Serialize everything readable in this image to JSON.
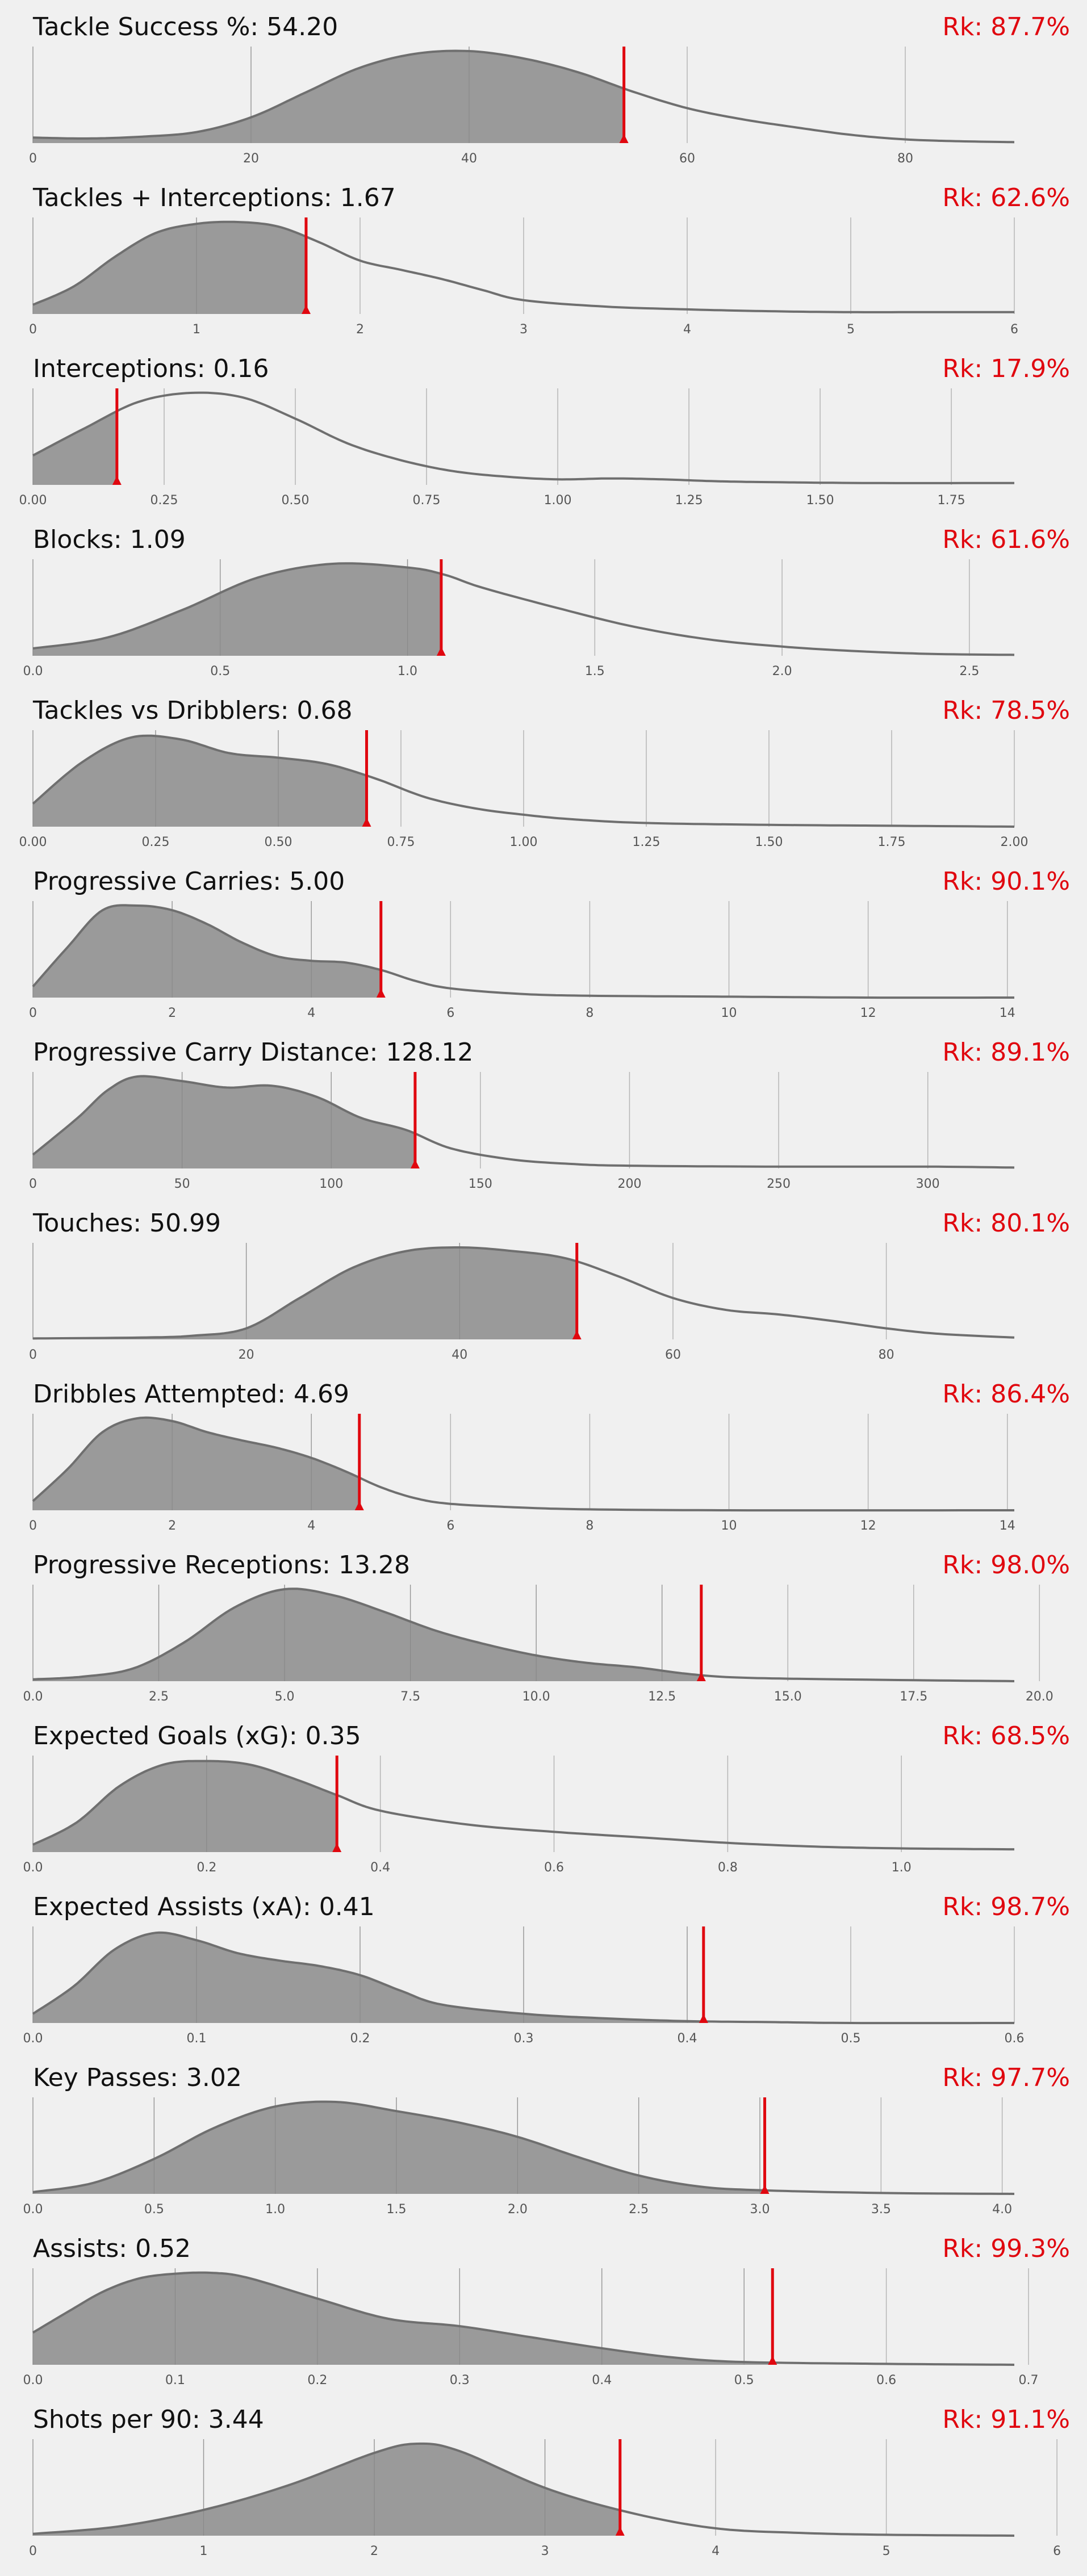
{
  "chart_data": [
    {
      "type": "area",
      "metric": "Tackle Success %",
      "value": 54.2,
      "value_label": "54.20",
      "rank_label": "Rk: 87.7%",
      "xlim": [
        0,
        90
      ],
      "ticks": [
        0,
        20,
        40,
        60,
        80
      ],
      "tick_labels": [
        "0",
        "20",
        "40",
        "60",
        "80"
      ],
      "density": {
        "x": [
          0,
          5,
          10,
          15,
          20,
          25,
          30,
          35,
          40,
          45,
          50,
          55,
          60,
          65,
          70,
          75,
          80,
          85,
          90
        ],
        "y": [
          0.06,
          0.05,
          0.07,
          0.12,
          0.28,
          0.55,
          0.82,
          0.97,
          1.0,
          0.92,
          0.77,
          0.56,
          0.38,
          0.26,
          0.17,
          0.09,
          0.04,
          0.02,
          0.01
        ]
      }
    },
    {
      "type": "area",
      "metric": "Tackles + Interceptions",
      "value": 1.67,
      "value_label": "1.67",
      "rank_label": "Rk: 62.6%",
      "xlim": [
        0,
        6
      ],
      "ticks": [
        0,
        1,
        2,
        3,
        4,
        5,
        6
      ],
      "tick_labels": [
        "0",
        "1",
        "2",
        "3",
        "4",
        "5",
        "6"
      ],
      "density": {
        "x": [
          0,
          0.25,
          0.5,
          0.75,
          1.0,
          1.25,
          1.5,
          1.75,
          2.0,
          2.25,
          2.5,
          2.75,
          3.0,
          3.5,
          4.0,
          4.5,
          5.0,
          5.5,
          6.0
        ],
        "y": [
          0.1,
          0.3,
          0.62,
          0.88,
          0.98,
          1.0,
          0.95,
          0.78,
          0.58,
          0.48,
          0.38,
          0.26,
          0.15,
          0.08,
          0.05,
          0.03,
          0.02,
          0.02,
          0.02
        ]
      }
    },
    {
      "type": "area",
      "metric": "Interceptions",
      "value": 0.16,
      "value_label": "0.16",
      "rank_label": "Rk: 17.9%",
      "xlim": [
        0,
        1.87
      ],
      "ticks": [
        0,
        0.25,
        0.5,
        0.75,
        1.0,
        1.25,
        1.5,
        1.75
      ],
      "tick_labels": [
        "0.00",
        "0.25",
        "0.50",
        "0.75",
        "1.00",
        "1.25",
        "1.50",
        "1.75"
      ],
      "density": {
        "x": [
          0,
          0.1,
          0.2,
          0.3,
          0.4,
          0.5,
          0.6,
          0.7,
          0.8,
          0.9,
          1.0,
          1.1,
          1.2,
          1.3,
          1.4,
          1.6,
          1.87
        ],
        "y": [
          0.32,
          0.62,
          0.9,
          1.0,
          0.95,
          0.72,
          0.45,
          0.27,
          0.15,
          0.09,
          0.06,
          0.07,
          0.06,
          0.04,
          0.03,
          0.02,
          0.02
        ]
      }
    },
    {
      "type": "area",
      "metric": "Blocks",
      "value": 1.09,
      "value_label": "1.09",
      "rank_label": "Rk: 61.6%",
      "xlim": [
        0,
        2.62
      ],
      "ticks": [
        0,
        0.5,
        1.0,
        1.5,
        2.0,
        2.5
      ],
      "tick_labels": [
        "0.0",
        "0.5",
        "1.0",
        "1.5",
        "2.0",
        "2.5"
      ],
      "density": {
        "x": [
          0,
          0.2,
          0.4,
          0.6,
          0.8,
          1.0,
          1.1,
          1.2,
          1.4,
          1.6,
          1.8,
          2.0,
          2.2,
          2.4,
          2.62
        ],
        "y": [
          0.08,
          0.2,
          0.5,
          0.85,
          1.0,
          0.96,
          0.88,
          0.74,
          0.52,
          0.32,
          0.18,
          0.1,
          0.05,
          0.02,
          0.01
        ]
      }
    },
    {
      "type": "area",
      "metric": "Tackles vs Dribblers",
      "value": 0.68,
      "value_label": "0.68",
      "rank_label": "Rk: 78.5%",
      "xlim": [
        0,
        2.0
      ],
      "ticks": [
        0,
        0.25,
        0.5,
        0.75,
        1.0,
        1.25,
        1.5,
        1.75,
        2.0
      ],
      "tick_labels": [
        "0.00",
        "0.25",
        "0.50",
        "0.75",
        "1.00",
        "1.25",
        "1.50",
        "1.75",
        "2.00"
      ],
      "density": {
        "x": [
          0,
          0.1,
          0.2,
          0.3,
          0.4,
          0.5,
          0.6,
          0.7,
          0.8,
          0.9,
          1.0,
          1.1,
          1.25,
          1.5,
          1.75,
          2.0
        ],
        "y": [
          0.25,
          0.7,
          0.97,
          0.95,
          0.8,
          0.75,
          0.68,
          0.52,
          0.32,
          0.2,
          0.13,
          0.08,
          0.04,
          0.02,
          0.01,
          0.0
        ]
      }
    },
    {
      "type": "area",
      "metric": "Progressive Carries",
      "value": 5.0,
      "value_label": "5.00",
      "rank_label": "Rk: 90.1%",
      "xlim": [
        0,
        14.1
      ],
      "ticks": [
        0,
        2,
        4,
        6,
        8,
        10,
        12,
        14
      ],
      "tick_labels": [
        "0",
        "2",
        "4",
        "6",
        "8",
        "10",
        "12",
        "14"
      ],
      "density": {
        "x": [
          0,
          0.5,
          1.0,
          1.5,
          2.0,
          2.5,
          3.0,
          3.5,
          4.0,
          4.5,
          5.0,
          5.5,
          6.0,
          7.0,
          8.0,
          10.0,
          12.0,
          14.1
        ],
        "y": [
          0.12,
          0.55,
          0.95,
          1.0,
          0.95,
          0.8,
          0.6,
          0.45,
          0.4,
          0.38,
          0.3,
          0.18,
          0.1,
          0.04,
          0.02,
          0.01,
          0.0,
          0.0
        ]
      }
    },
    {
      "type": "area",
      "metric": "Progressive Carry Distance",
      "value": 128.12,
      "value_label": "128.12",
      "rank_label": "Rk: 89.1%",
      "xlim": [
        0,
        329
      ],
      "ticks": [
        0,
        50,
        100,
        150,
        200,
        250,
        300
      ],
      "tick_labels": [
        "0",
        "50",
        "100",
        "150",
        "200",
        "250",
        "300"
      ],
      "density": {
        "x": [
          0,
          15,
          25,
          35,
          50,
          65,
          80,
          95,
          110,
          125,
          140,
          160,
          180,
          200,
          250,
          300,
          329
        ],
        "y": [
          0.15,
          0.55,
          0.85,
          1.0,
          0.95,
          0.88,
          0.9,
          0.78,
          0.55,
          0.42,
          0.22,
          0.1,
          0.05,
          0.03,
          0.02,
          0.02,
          0.01
        ]
      }
    },
    {
      "type": "area",
      "metric": "Touches",
      "value": 50.99,
      "value_label": "50.99",
      "rank_label": "Rk: 80.1%",
      "xlim": [
        0,
        92
      ],
      "ticks": [
        0,
        20,
        40,
        60,
        80
      ],
      "tick_labels": [
        "0",
        "20",
        "40",
        "60",
        "80"
      ],
      "density": {
        "x": [
          0,
          10,
          15,
          20,
          25,
          30,
          35,
          40,
          45,
          50,
          55,
          60,
          65,
          70,
          75,
          80,
          85,
          92
        ],
        "y": [
          0.01,
          0.02,
          0.04,
          0.12,
          0.45,
          0.78,
          0.96,
          1.0,
          0.96,
          0.88,
          0.68,
          0.45,
          0.32,
          0.27,
          0.2,
          0.12,
          0.06,
          0.02
        ]
      }
    },
    {
      "type": "area",
      "metric": "Dribbles Attempted",
      "value": 4.69,
      "value_label": "4.69",
      "rank_label": "Rk: 86.4%",
      "xlim": [
        0,
        14.1
      ],
      "ticks": [
        0,
        2,
        4,
        6,
        8,
        10,
        12,
        14
      ],
      "tick_labels": [
        "0",
        "2",
        "4",
        "6",
        "8",
        "10",
        "12",
        "14"
      ],
      "density": {
        "x": [
          0,
          0.5,
          1.0,
          1.5,
          2.0,
          2.5,
          3.0,
          3.5,
          4.0,
          4.5,
          5.0,
          5.5,
          6.0,
          7.0,
          8.0,
          10.0,
          14.1
        ],
        "y": [
          0.1,
          0.45,
          0.85,
          1.0,
          0.97,
          0.85,
          0.76,
          0.68,
          0.57,
          0.42,
          0.25,
          0.13,
          0.07,
          0.03,
          0.01,
          0.0,
          0.0
        ]
      }
    },
    {
      "type": "area",
      "metric": "Progressive Receptions",
      "value": 13.28,
      "value_label": "13.28",
      "rank_label": "Rk: 98.0%",
      "xlim": [
        0,
        19.5
      ],
      "ticks": [
        0,
        2.5,
        5.0,
        7.5,
        10.0,
        12.5,
        15.0,
        17.5,
        20.0
      ],
      "tick_labels": [
        "0.0",
        "2.5",
        "5.0",
        "7.5",
        "10.0",
        "12.5",
        "15.0",
        "17.5",
        "20.0"
      ],
      "density": {
        "x": [
          0,
          1,
          2,
          3,
          4,
          5,
          6,
          7,
          8,
          9,
          10,
          11,
          12,
          13,
          14,
          16,
          19.5
        ],
        "y": [
          0.02,
          0.05,
          0.14,
          0.42,
          0.8,
          1.0,
          0.93,
          0.75,
          0.55,
          0.4,
          0.28,
          0.2,
          0.15,
          0.08,
          0.04,
          0.02,
          0.0
        ]
      }
    },
    {
      "type": "area",
      "metric": "Expected Goals (xG)",
      "value": 0.35,
      "value_label": "0.35",
      "rank_label": "Rk: 68.5%",
      "xlim": [
        0,
        1.13
      ],
      "ticks": [
        0,
        0.2,
        0.4,
        0.6,
        0.8,
        1.0
      ],
      "tick_labels": [
        "0.0",
        "0.2",
        "0.4",
        "0.6",
        "0.8",
        "1.0"
      ],
      "density": {
        "x": [
          0,
          0.05,
          0.1,
          0.15,
          0.2,
          0.25,
          0.3,
          0.35,
          0.4,
          0.5,
          0.6,
          0.7,
          0.8,
          0.9,
          1.0,
          1.13
        ],
        "y": [
          0.08,
          0.32,
          0.72,
          0.95,
          0.99,
          0.95,
          0.8,
          0.62,
          0.45,
          0.3,
          0.22,
          0.16,
          0.1,
          0.06,
          0.04,
          0.03
        ]
      }
    },
    {
      "type": "area",
      "metric": "Expected Assists (xA)",
      "value": 0.41,
      "value_label": "0.41",
      "rank_label": "Rk: 98.7%",
      "xlim": [
        0,
        0.6
      ],
      "ticks": [
        0,
        0.1,
        0.2,
        0.3,
        0.4,
        0.5,
        0.6
      ],
      "tick_labels": [
        "0.0",
        "0.1",
        "0.2",
        "0.3",
        "0.4",
        "0.5",
        "0.6"
      ],
      "density": {
        "x": [
          0,
          0.025,
          0.05,
          0.075,
          0.1,
          0.125,
          0.15,
          0.175,
          0.2,
          0.225,
          0.25,
          0.3,
          0.35,
          0.4,
          0.45,
          0.5,
          0.6
        ],
        "y": [
          0.1,
          0.4,
          0.8,
          0.98,
          0.9,
          0.76,
          0.68,
          0.62,
          0.52,
          0.35,
          0.2,
          0.1,
          0.05,
          0.02,
          0.01,
          0.0,
          0.0
        ]
      }
    },
    {
      "type": "area",
      "metric": "Key Passes",
      "value": 3.02,
      "value_label": "3.02",
      "rank_label": "Rk: 97.7%",
      "xlim": [
        0,
        4.05
      ],
      "ticks": [
        0,
        0.5,
        1.0,
        1.5,
        2.0,
        2.5,
        3.0,
        3.5,
        4.0
      ],
      "tick_labels": [
        "0.0",
        "0.5",
        "1.0",
        "1.5",
        "2.0",
        "2.5",
        "3.0",
        "3.5",
        "4.0"
      ],
      "density": {
        "x": [
          0,
          0.25,
          0.5,
          0.75,
          1.0,
          1.25,
          1.5,
          1.75,
          2.0,
          2.25,
          2.5,
          2.75,
          3.0,
          3.5,
          4.05
        ],
        "y": [
          0.02,
          0.12,
          0.38,
          0.72,
          0.95,
          1.0,
          0.9,
          0.78,
          0.62,
          0.4,
          0.2,
          0.08,
          0.04,
          0.01,
          0.0
        ]
      }
    },
    {
      "type": "area",
      "metric": "Assists",
      "value": 0.52,
      "value_label": "0.52",
      "rank_label": "Rk: 99.3%",
      "xlim": [
        0,
        0.69
      ],
      "ticks": [
        0,
        0.1,
        0.2,
        0.3,
        0.4,
        0.5,
        0.6,
        0.7
      ],
      "tick_labels": [
        "0.0",
        "0.1",
        "0.2",
        "0.3",
        "0.4",
        "0.5",
        "0.6",
        "0.7"
      ],
      "density": {
        "x": [
          0,
          0.025,
          0.05,
          0.075,
          0.1,
          0.125,
          0.15,
          0.2,
          0.25,
          0.3,
          0.35,
          0.4,
          0.45,
          0.5,
          0.6,
          0.69
        ],
        "y": [
          0.35,
          0.58,
          0.8,
          0.94,
          0.99,
          1.0,
          0.95,
          0.72,
          0.5,
          0.42,
          0.3,
          0.18,
          0.08,
          0.03,
          0.01,
          0.0
        ]
      }
    },
    {
      "type": "area",
      "metric": "Shots per 90",
      "value": 3.44,
      "value_label": "3.44",
      "rank_label": "Rk: 91.1%",
      "xlim": [
        0,
        5.75
      ],
      "ticks": [
        0,
        1,
        2,
        3,
        4,
        5,
        6
      ],
      "tick_labels": [
        "0",
        "1",
        "2",
        "3",
        "4",
        "5",
        "6"
      ],
      "density": {
        "x": [
          0,
          0.5,
          1.0,
          1.5,
          2.0,
          2.25,
          2.5,
          3.0,
          3.5,
          4.0,
          4.5,
          5.0,
          5.75
        ],
        "y": [
          0.02,
          0.1,
          0.28,
          0.55,
          0.9,
          1.0,
          0.92,
          0.52,
          0.25,
          0.08,
          0.03,
          0.01,
          0.0
        ]
      }
    }
  ],
  "colors": {
    "background": "#f0f0f0",
    "fill": "#9a9a9a",
    "curve": "#6f6f6f",
    "grid": "#b5b5b5",
    "marker": "#e0070f",
    "rank_text": "#e0070f"
  }
}
